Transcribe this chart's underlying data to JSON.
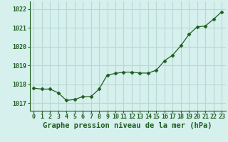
{
  "x": [
    0,
    1,
    2,
    3,
    4,
    5,
    6,
    7,
    8,
    9,
    10,
    11,
    12,
    13,
    14,
    15,
    16,
    17,
    18,
    19,
    20,
    21,
    22,
    23
  ],
  "y": [
    1017.8,
    1017.75,
    1017.75,
    1017.55,
    1017.15,
    1017.2,
    1017.35,
    1017.35,
    1017.75,
    1018.5,
    1018.58,
    1018.65,
    1018.65,
    1018.6,
    1018.6,
    1018.75,
    1019.25,
    1019.55,
    1020.05,
    1020.65,
    1021.05,
    1021.1,
    1021.45,
    1021.85
  ],
  "line_color": "#1f5e1f",
  "marker": "D",
  "marker_size": 2.5,
  "bg_color": "#d6f0ee",
  "grid_color": "#b8d8d4",
  "xlabel": "Graphe pression niveau de la mer (hPa)",
  "xlabel_color": "#1f5e1f",
  "tick_color": "#1f5e1f",
  "axis_color": "#1f5e1f",
  "ylim": [
    1016.6,
    1022.4
  ],
  "xlim": [
    -0.5,
    23.5
  ],
  "yticks": [
    1017,
    1018,
    1019,
    1020,
    1021,
    1022
  ],
  "xtick_labels": [
    "0",
    "1",
    "2",
    "3",
    "4",
    "5",
    "6",
    "7",
    "8",
    "9",
    "10",
    "11",
    "12",
    "13",
    "14",
    "15",
    "16",
    "17",
    "18",
    "19",
    "20",
    "21",
    "22",
    "23"
  ],
  "title_fontsize": 7.5,
  "tick_fontsize": 6.0
}
